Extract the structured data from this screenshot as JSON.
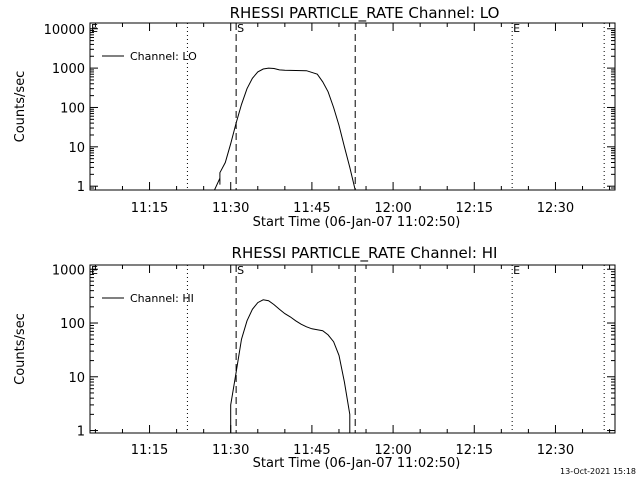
{
  "timestamp": "13-Oct-2021 15:18",
  "chart_data": [
    {
      "type": "line",
      "title": "RHESSI PARTICLE_RATE Channel: LO",
      "xlabel": "Start Time (06-Jan-07 11:02:50)",
      "ylabel": "Counts/sec",
      "y_scale": "log",
      "ylim": [
        0.8,
        14000
      ],
      "xlim": [
        "11:04",
        "12:41"
      ],
      "x_ticks": [
        "11:15",
        "11:30",
        "11:45",
        "12:00",
        "12:15",
        "12:30"
      ],
      "y_ticks": [
        "1",
        "10",
        "100",
        "1000",
        "10000"
      ],
      "legend": {
        "position": "top-left",
        "entries": [
          "Channel: LO"
        ]
      },
      "markers": [
        {
          "time": "11:04",
          "label": "E",
          "style": "dotted"
        },
        {
          "time": "11:22",
          "label": "",
          "style": "dotted"
        },
        {
          "time": "11:31",
          "label": "S",
          "style": "dashed"
        },
        {
          "time": "11:53",
          "label": "",
          "style": "dashed"
        },
        {
          "time": "12:22",
          "label": "E",
          "style": "dotted"
        },
        {
          "time": "12:39",
          "label": "",
          "style": "dotted"
        }
      ],
      "series": [
        {
          "name": "Channel: LO",
          "x": [
            "11:27",
            "11:28",
            "11:28",
            "11:28",
            "11:29",
            "11:30",
            "11:31",
            "11:32",
            "11:33",
            "11:34",
            "11:35",
            "11:36",
            "11:37",
            "11:38",
            "11:39",
            "11:40",
            "11:42",
            "11:44",
            "11:46",
            "11:47",
            "11:48",
            "11:49",
            "11:50",
            "11:51",
            "11:52",
            "11:53"
          ],
          "y": [
            0.8,
            1.6,
            1.1,
            2.2,
            4,
            12,
            40,
            120,
            300,
            550,
            800,
            950,
            1000,
            980,
            900,
            880,
            870,
            860,
            700,
            450,
            250,
            100,
            35,
            10,
            3,
            0.8
          ]
        }
      ]
    },
    {
      "type": "line",
      "title": "RHESSI PARTICLE_RATE Channel: HI",
      "xlabel": "Start Time (06-Jan-07 11:02:50)",
      "ylabel": "Counts/sec",
      "y_scale": "log",
      "ylim": [
        0.9,
        1200
      ],
      "xlim": [
        "11:04",
        "12:41"
      ],
      "x_ticks": [
        "11:15",
        "11:30",
        "11:45",
        "12:00",
        "12:15",
        "12:30"
      ],
      "y_ticks": [
        "1",
        "10",
        "100",
        "1000"
      ],
      "legend": {
        "position": "top-left",
        "entries": [
          "Channel: HI"
        ]
      },
      "markers": [
        {
          "time": "11:04",
          "label": "E",
          "style": "dotted"
        },
        {
          "time": "11:22",
          "label": "",
          "style": "dotted"
        },
        {
          "time": "11:31",
          "label": "S",
          "style": "dashed"
        },
        {
          "time": "11:53",
          "label": "",
          "style": "dashed"
        },
        {
          "time": "12:22",
          "label": "E",
          "style": "dotted"
        },
        {
          "time": "12:39",
          "label": "",
          "style": "dotted"
        }
      ],
      "series": [
        {
          "name": "Channel: HI",
          "x": [
            "11:30",
            "11:30",
            "11:31",
            "11:32",
            "11:33",
            "11:34",
            "11:35",
            "11:36",
            "11:37",
            "11:38",
            "11:39",
            "11:40",
            "11:41",
            "11:42",
            "11:43",
            "11:44",
            "11:45",
            "11:46",
            "11:47",
            "11:48",
            "11:49",
            "11:50",
            "11:51",
            "11:52",
            "11:52"
          ],
          "y": [
            0.9,
            3,
            12,
            50,
            110,
            180,
            240,
            270,
            260,
            220,
            180,
            150,
            130,
            110,
            95,
            85,
            78,
            75,
            72,
            60,
            45,
            25,
            8,
            2,
            0.9
          ]
        }
      ]
    }
  ]
}
